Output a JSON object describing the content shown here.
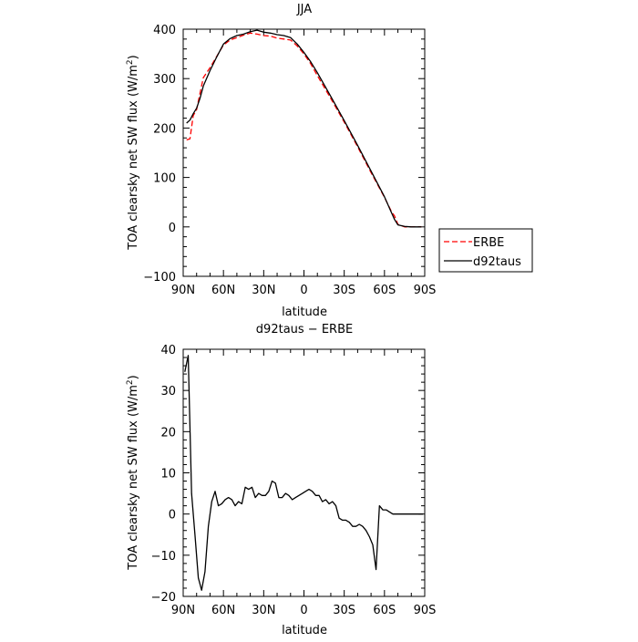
{
  "chart_data": [
    {
      "type": "line",
      "title": "JJA",
      "xlabel": "latitude",
      "ylabel": "TOA clearsky net SW flux (W/m²)",
      "ylabel_main": "TOA clearsky net SW flux (W/m",
      "ylabel_sup": "2",
      "ylabel_tail": ")",
      "xlim": [
        90,
        -90
      ],
      "ylim": [
        -100,
        400
      ],
      "x_ticks": [
        90,
        60,
        30,
        0,
        -30,
        -60,
        -90
      ],
      "x_tick_labels": [
        "90N",
        "60N",
        "30N",
        "0",
        "30S",
        "60S",
        "90S"
      ],
      "y_ticks": [
        -100,
        0,
        100,
        200,
        300,
        400
      ],
      "y_tick_labels": [
        "−100",
        "0",
        "100",
        "200",
        "300",
        "400"
      ],
      "legend_position": "outside-right",
      "series": [
        {
          "name": "ERBE",
          "color": "#ff0000",
          "dash": "6,3",
          "x": [
            87.5,
            85,
            82.5,
            80,
            77.5,
            75,
            70,
            65,
            60,
            55,
            50,
            45,
            40,
            35,
            30,
            25,
            20,
            15,
            10,
            5,
            0,
            -5,
            -10,
            -20,
            -30,
            -40,
            -50,
            -60,
            -65,
            -67.5,
            -70,
            -75,
            -80,
            -85,
            -87.5
          ],
          "y": [
            176,
            178,
            225,
            237,
            270,
            302,
            322,
            345,
            368,
            378,
            383,
            388,
            392,
            390,
            387,
            386,
            382,
            380,
            378,
            366,
            350,
            330,
            306,
            260,
            212,
            162,
            110,
            60,
            32,
            22,
            5,
            0,
            0,
            0,
            0
          ]
        },
        {
          "name": "d92taus",
          "color": "#000000",
          "dash": "",
          "x": [
            87.5,
            85,
            82.5,
            80,
            77.5,
            75,
            70,
            65,
            60,
            55,
            50,
            45,
            40,
            35,
            30,
            25,
            20,
            15,
            10,
            5,
            0,
            -5,
            -10,
            -20,
            -30,
            -40,
            -50,
            -60,
            -65,
            -67.5,
            -70,
            -75,
            -80,
            -85,
            -87.5
          ],
          "y": [
            210,
            216,
            229,
            240,
            260,
            285,
            316,
            344,
            370,
            381,
            387,
            390,
            395,
            398,
            394,
            392,
            389,
            387,
            383,
            370,
            353,
            334,
            312,
            264,
            215,
            165,
            113,
            61,
            30,
            15,
            4,
            1,
            0,
            0,
            0
          ]
        }
      ]
    },
    {
      "type": "line",
      "title": "d92taus − ERBE",
      "xlabel": "latitude",
      "ylabel": "TOA clearsky net SW flux (W/m²)",
      "ylabel_main": "TOA clearsky net SW flux (W/m",
      "ylabel_sup": "2",
      "ylabel_tail": ")",
      "xlim": [
        90,
        -90
      ],
      "ylim": [
        -20,
        40
      ],
      "x_ticks": [
        90,
        60,
        30,
        0,
        -30,
        -60,
        -90
      ],
      "x_tick_labels": [
        "90N",
        "60N",
        "30N",
        "0",
        "30S",
        "60S",
        "90S"
      ],
      "y_ticks": [
        -20,
        -10,
        0,
        10,
        20,
        30,
        40
      ],
      "y_tick_labels": [
        "−20",
        "−10",
        "0",
        "10",
        "20",
        "30",
        "40"
      ],
      "series": [
        {
          "color": "#000000",
          "x": [
            88.75,
            86.25,
            83.75,
            81.25,
            78.75,
            76.25,
            73.75,
            71.25,
            68.75,
            66.25,
            63.75,
            61.25,
            58.75,
            56.25,
            53.75,
            51.25,
            48.75,
            46.25,
            43.75,
            41.25,
            38.75,
            36.25,
            33.75,
            31.25,
            28.75,
            26.25,
            23.75,
            21.25,
            18.75,
            16.25,
            13.75,
            11.25,
            8.75,
            6.25,
            3.75,
            1.25,
            -1.25,
            -3.75,
            -6.25,
            -8.75,
            -11.25,
            -13.75,
            -16.25,
            -18.75,
            -21.25,
            -23.75,
            -26.25,
            -28.75,
            -31.25,
            -33.75,
            -36.25,
            -38.75,
            -41.25,
            -43.75,
            -46.25,
            -48.75,
            -51.25,
            -53.75,
            -56.25,
            -58.75,
            -61.25,
            -63.75,
            -66.25,
            -68.75,
            -71.25,
            -73.75,
            -76.25,
            -78.75,
            -81.25,
            -83.75,
            -86.25,
            -88.75
          ],
          "y": [
            34.5,
            38.5,
            5,
            -5,
            -15.5,
            -18.5,
            -14,
            -3,
            3,
            5.5,
            2,
            2.5,
            3.5,
            4,
            3.5,
            2,
            3,
            2.5,
            6.5,
            6,
            6.5,
            4,
            5,
            4.5,
            4.5,
            5.5,
            8,
            7.5,
            4,
            4,
            5,
            4.5,
            3.5,
            4,
            4.5,
            5,
            5.5,
            6,
            5.5,
            4.5,
            4.5,
            3,
            3.5,
            2.5,
            3,
            2,
            -1,
            -1.5,
            -1.5,
            -2,
            -3,
            -3,
            -2.5,
            -3,
            -4,
            -5.5,
            -7.5,
            -13.5,
            2,
            1,
            1,
            0.5,
            0,
            0,
            0,
            0,
            0,
            0,
            0,
            0,
            0,
            0
          ]
        }
      ]
    }
  ]
}
